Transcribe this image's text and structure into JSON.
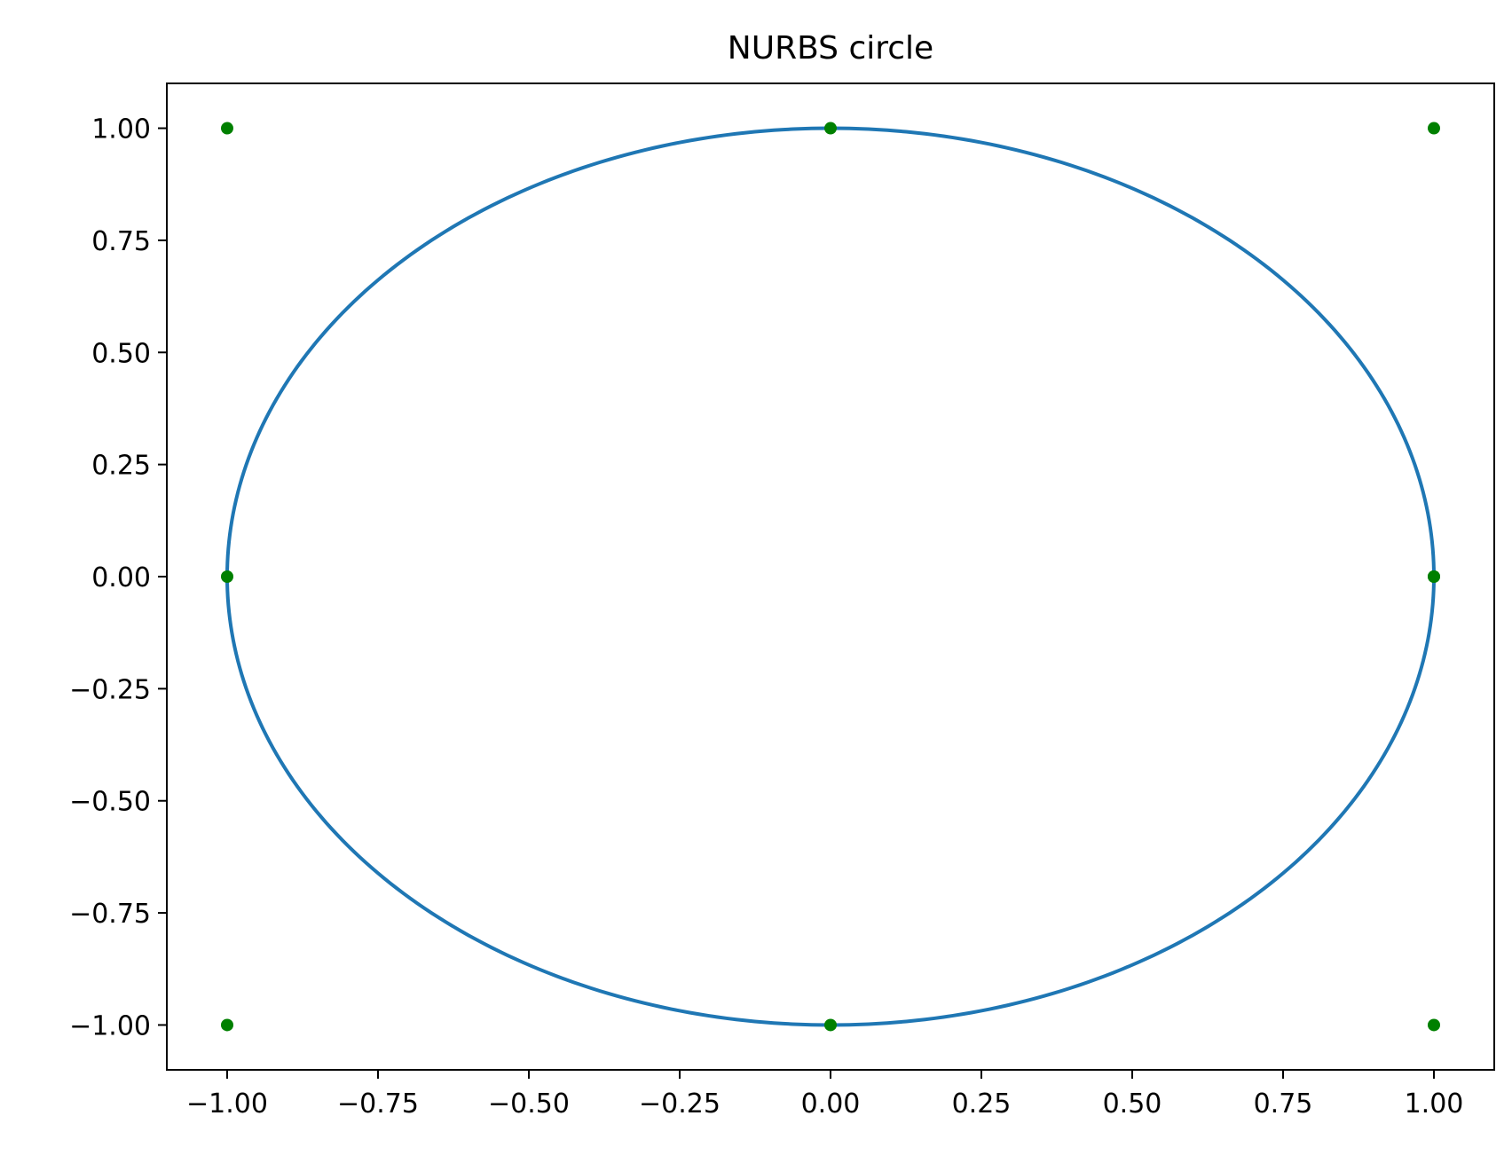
{
  "chart_data": {
    "type": "line",
    "title": "NURBS circle",
    "xlabel": "",
    "ylabel": "",
    "xlim": [
      -1.1,
      1.1
    ],
    "ylim": [
      -1.1,
      1.1
    ],
    "grid": false,
    "xticks": [
      -1.0,
      -0.75,
      -0.5,
      -0.25,
      0.0,
      0.25,
      0.5,
      0.75,
      1.0
    ],
    "xtick_labels": [
      "−1.00",
      "−0.75",
      "−0.50",
      "−0.25",
      "0.00",
      "0.25",
      "0.50",
      "0.75",
      "1.00"
    ],
    "yticks": [
      1.0,
      0.75,
      0.5,
      0.25,
      0.0,
      -0.25,
      -0.5,
      -0.75,
      -1.0
    ],
    "ytick_labels": [
      "1.00",
      "0.75",
      "0.50",
      "0.25",
      "0.00",
      "−0.25",
      "−0.50",
      "−0.75",
      "−1.00"
    ],
    "series": [
      {
        "type": "line",
        "color": "#1f77b4",
        "curve": "circle",
        "center": [
          0,
          0
        ],
        "radius": 1.0
      },
      {
        "type": "scatter",
        "color": "#008000",
        "points": [
          [
            1,
            0
          ],
          [
            1,
            1
          ],
          [
            0,
            1
          ],
          [
            -1,
            1
          ],
          [
            -1,
            0
          ],
          [
            -1,
            -1
          ],
          [
            0,
            -1
          ],
          [
            1,
            -1
          ],
          [
            1,
            0
          ]
        ]
      }
    ]
  }
}
